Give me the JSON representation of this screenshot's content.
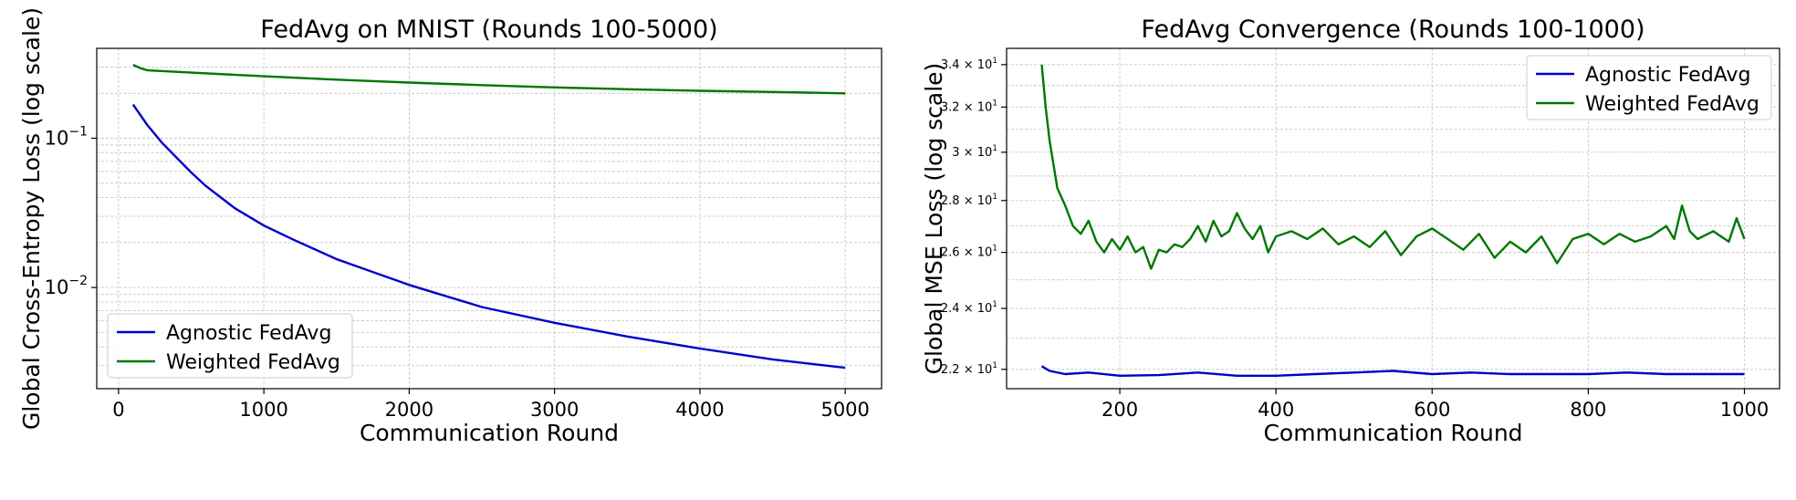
{
  "chart_data": [
    {
      "type": "line",
      "title": "FedAvg on MNIST (Rounds 100-5000)",
      "xlabel": "Communication Round",
      "ylabel": "Global Cross-Entropy Loss (log scale)",
      "yscale": "log",
      "xlim": [
        -150,
        5250
      ],
      "ylim": [
        0.0021,
        0.4
      ],
      "xticks": [
        0,
        1000,
        2000,
        3000,
        4000,
        5000
      ],
      "xtick_labels": [
        "0",
        "1000",
        "2000",
        "3000",
        "4000",
        "5000"
      ],
      "yticks": [
        0.1,
        0.01
      ],
      "ytick_labels": [
        {
          "base": "10",
          "exp": "−1"
        },
        {
          "base": "10",
          "exp": "−2"
        }
      ],
      "grid": true,
      "legend": "lower-left",
      "series": [
        {
          "name": "Agnostic FedAvg",
          "color": "#0000cc",
          "x": [
            100,
            200,
            300,
            400,
            500,
            600,
            800,
            1000,
            1200,
            1500,
            2000,
            2500,
            3000,
            3500,
            4000,
            4500,
            5000
          ],
          "y": [
            0.168,
            0.122,
            0.093,
            0.074,
            0.059,
            0.048,
            0.034,
            0.026,
            0.021,
            0.0155,
            0.0104,
            0.0074,
            0.0058,
            0.0047,
            0.0039,
            0.0033,
            0.0029
          ]
        },
        {
          "name": "Weighted FedAvg",
          "color": "#007700",
          "x": [
            100,
            150,
            200,
            500,
            1000,
            1500,
            2000,
            2500,
            3000,
            3500,
            4000,
            4500,
            5000
          ],
          "y": [
            0.31,
            0.295,
            0.285,
            0.275,
            0.26,
            0.247,
            0.236,
            0.227,
            0.219,
            0.213,
            0.208,
            0.204,
            0.2
          ]
        }
      ]
    },
    {
      "type": "line",
      "title": "FedAvg Convergence (Rounds 100-1000)",
      "xlabel": "Communication Round",
      "ylabel": "Global MSE Loss (log scale)",
      "yscale": "log",
      "xlim": [
        55,
        1045
      ],
      "ylim": [
        21.4,
        34.8
      ],
      "xticks": [
        200,
        400,
        600,
        800,
        1000
      ],
      "xtick_labels": [
        "200",
        "400",
        "600",
        "800",
        "1000"
      ],
      "yticks": [
        22,
        24,
        26,
        28,
        30,
        32,
        34
      ],
      "ytick_labels": [
        {
          "base": "2.2 × 10",
          "exp": "1"
        },
        {
          "base": "2.4 × 10",
          "exp": "1"
        },
        {
          "base": "2.6 × 10",
          "exp": "1"
        },
        {
          "base": "2.8 × 10",
          "exp": "1"
        },
        {
          "base": "3 × 10",
          "exp": "1"
        },
        {
          "base": "3.2 × 10",
          "exp": "1"
        },
        {
          "base": "3.4 × 10",
          "exp": "1"
        }
      ],
      "grid": true,
      "legend": "upper-right",
      "series": [
        {
          "name": "Agnostic FedAvg",
          "color": "#0000cc",
          "x": [
            100,
            110,
            130,
            160,
            200,
            250,
            300,
            350,
            400,
            450,
            500,
            550,
            600,
            650,
            700,
            750,
            800,
            850,
            900,
            950,
            1000
          ],
          "y": [
            22.1,
            21.95,
            21.85,
            21.9,
            21.8,
            21.82,
            21.9,
            21.8,
            21.8,
            21.85,
            21.9,
            21.95,
            21.85,
            21.9,
            21.85,
            21.85,
            21.85,
            21.9,
            21.85,
            21.85,
            21.85
          ]
        },
        {
          "name": "Weighted FedAvg",
          "color": "#007700",
          "x": [
            100,
            105,
            110,
            115,
            120,
            130,
            140,
            150,
            160,
            170,
            180,
            190,
            200,
            210,
            220,
            230,
            240,
            250,
            260,
            270,
            280,
            290,
            300,
            310,
            320,
            330,
            340,
            350,
            360,
            370,
            380,
            390,
            400,
            420,
            440,
            460,
            480,
            500,
            520,
            540,
            560,
            580,
            600,
            620,
            640,
            660,
            680,
            700,
            720,
            740,
            760,
            780,
            800,
            820,
            840,
            860,
            880,
            900,
            910,
            920,
            930,
            940,
            960,
            980,
            990,
            1000
          ],
          "y": [
            34.0,
            32.0,
            30.5,
            29.5,
            28.5,
            27.8,
            27.0,
            26.7,
            27.2,
            26.4,
            26.0,
            26.5,
            26.1,
            26.6,
            26.0,
            26.2,
            25.4,
            26.1,
            26.0,
            26.3,
            26.2,
            26.5,
            27.0,
            26.4,
            27.2,
            26.6,
            26.8,
            27.5,
            26.9,
            26.5,
            27.0,
            26.0,
            26.6,
            26.8,
            26.5,
            26.9,
            26.3,
            26.6,
            26.2,
            26.8,
            25.9,
            26.6,
            26.9,
            26.5,
            26.1,
            26.7,
            25.8,
            26.4,
            26.0,
            26.6,
            25.6,
            26.5,
            26.7,
            26.3,
            26.7,
            26.4,
            26.6,
            27.0,
            26.5,
            27.8,
            26.8,
            26.5,
            26.8,
            26.4,
            27.3,
            26.5
          ]
        }
      ]
    }
  ]
}
